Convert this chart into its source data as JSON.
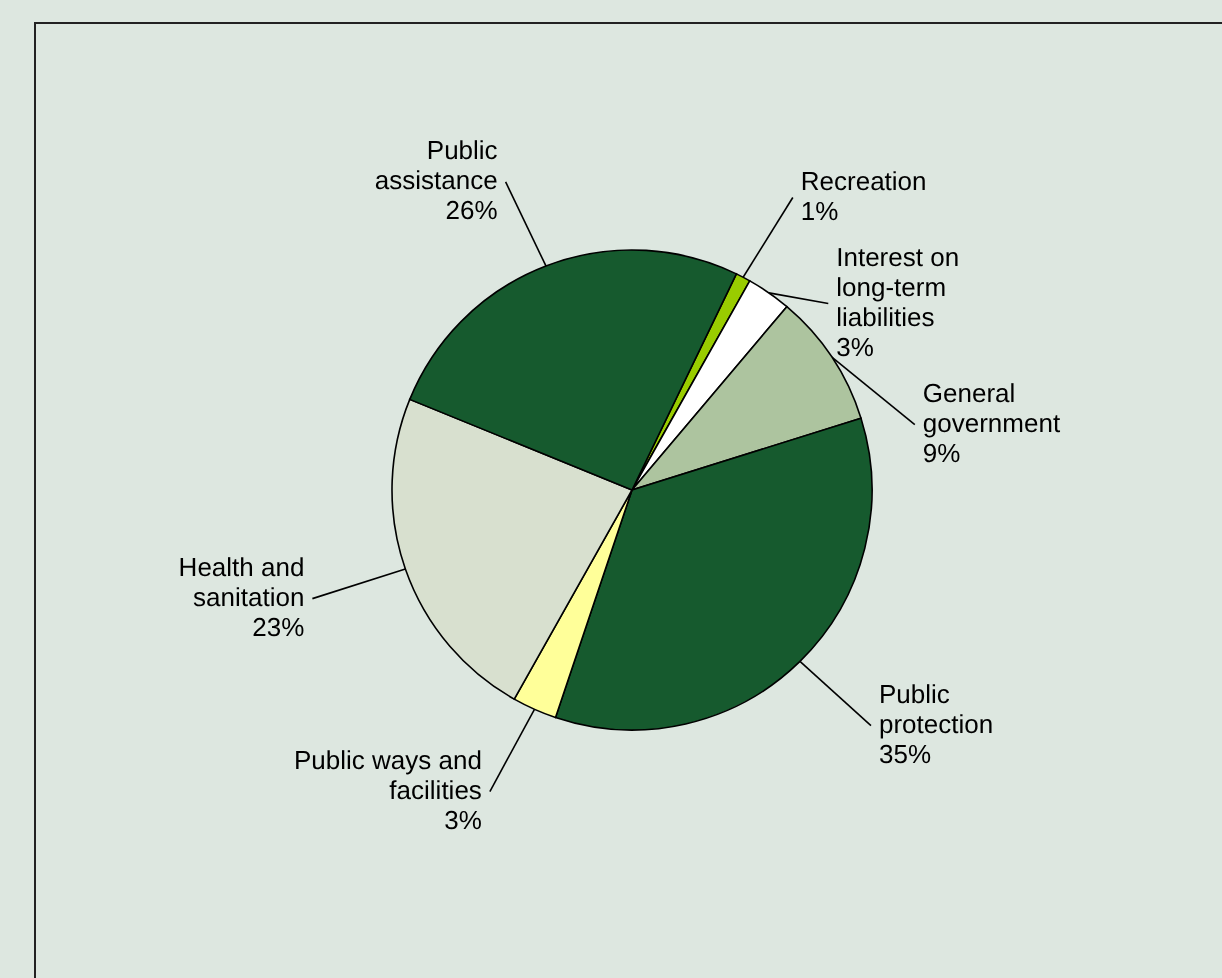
{
  "chart_data": {
    "type": "pie",
    "categories": [
      "Recreation",
      "Interest on long-term liabilities",
      "General government",
      "Public protection",
      "Public ways and facilities",
      "Health and sanitation",
      "Public assistance"
    ],
    "values": [
      1,
      3,
      9,
      35,
      3,
      23,
      26
    ],
    "colors": [
      "#99cc00",
      "#ffffff",
      "#adc49f",
      "#165a2e",
      "#ffff99",
      "#d8e0cf",
      "#165a2e"
    ],
    "value_labels": [
      "1%",
      "3%",
      "9%",
      "35%",
      "3%",
      "23%",
      "26%"
    ]
  }
}
